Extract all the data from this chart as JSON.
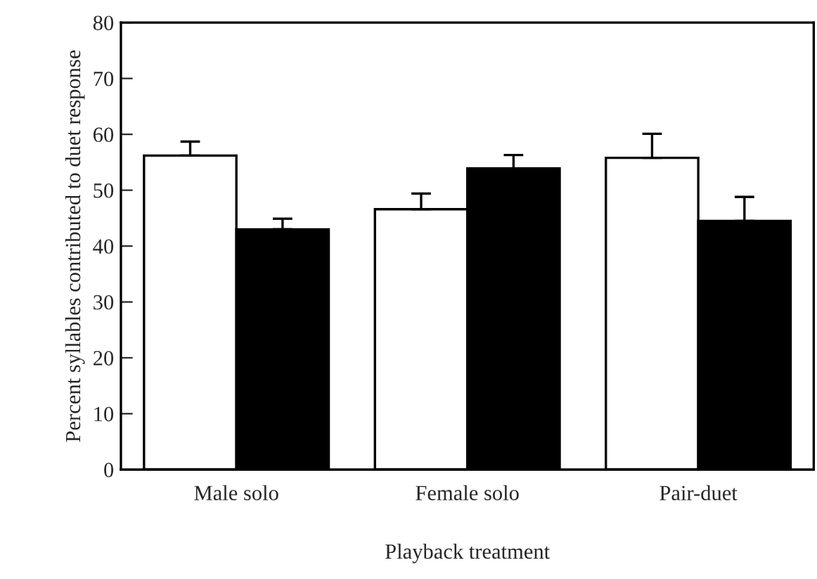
{
  "chart_data": {
    "type": "bar",
    "xlabel": "Playback treatment",
    "ylabel": "Percent syllables contributed to duet response",
    "categories": [
      "Male solo",
      "Female solo",
      "Pair-duet"
    ],
    "series": [
      {
        "color": "#ffffff",
        "values": [
          56.2,
          46.6,
          55.8
        ],
        "errors": [
          [
            56.2,
            58.7
          ],
          [
            46.6,
            49.4
          ],
          [
            55.8,
            60.1
          ]
        ]
      },
      {
        "color": "#000000",
        "values": [
          43.0,
          53.9,
          44.5
        ],
        "errors": [
          [
            43.0,
            44.9
          ],
          [
            53.9,
            56.3
          ],
          [
            44.5,
            48.8
          ]
        ]
      }
    ],
    "ylim": [
      0,
      80
    ],
    "yticks": [
      0,
      10,
      20,
      30,
      40,
      50,
      60,
      70,
      80
    ],
    "grid": false,
    "legend": false
  }
}
